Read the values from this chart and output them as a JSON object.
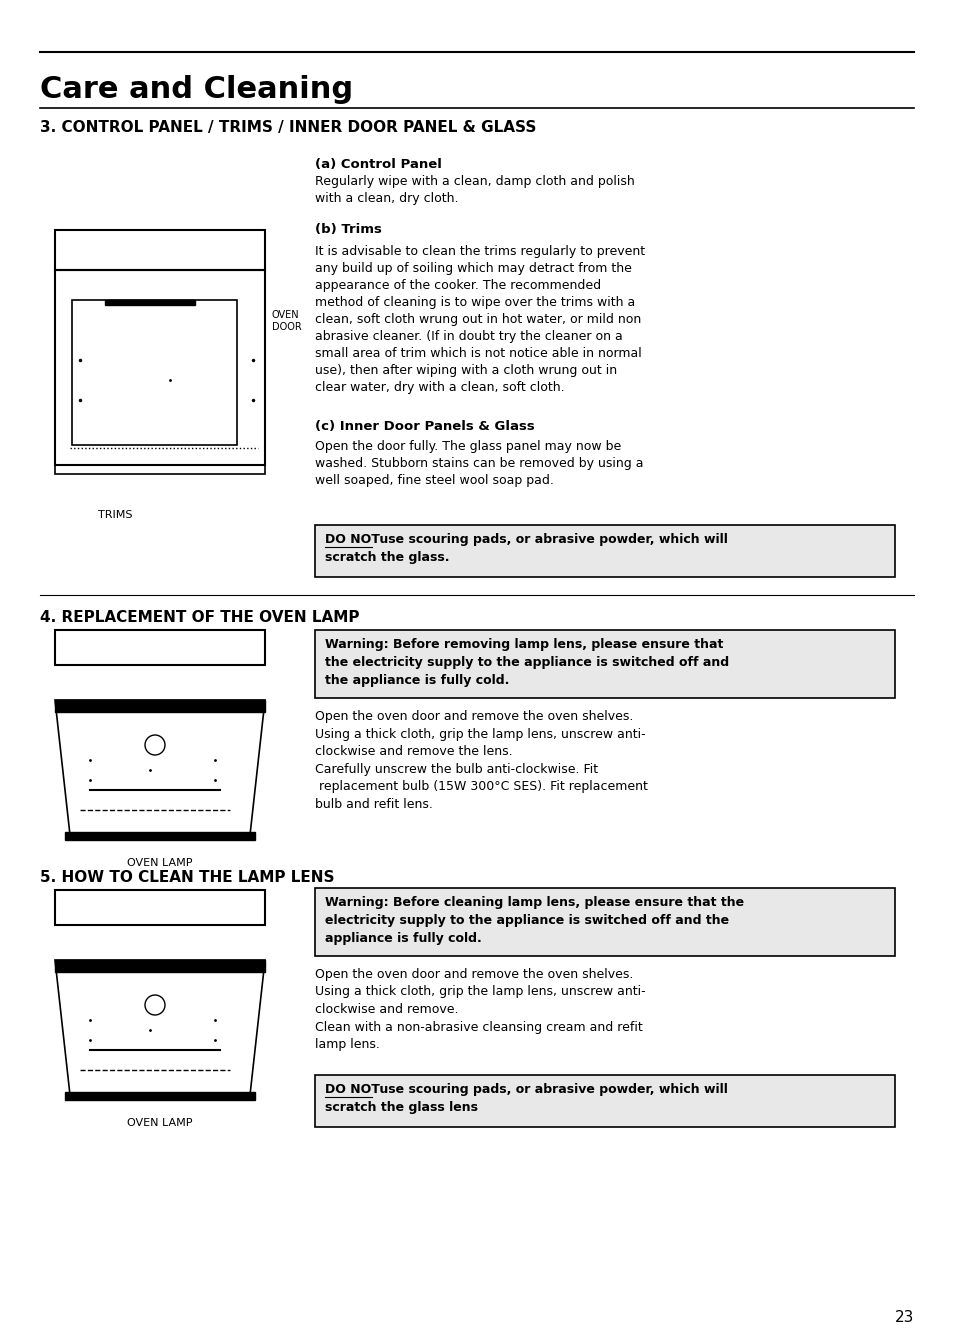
{
  "bg_color": "#ffffff",
  "page_number": "23",
  "main_title": "Care and Cleaning",
  "section3_title": "3. CONTROL PANEL / TRIMS / INNER DOOR PANEL & GLASS",
  "section4_title": "4. REPLACEMENT OF THE OVEN LAMP",
  "section5_title": "5. HOW TO CLEAN THE LAMP LENS",
  "sub_a_title": "(a) Control Panel",
  "sub_a_text": "Regularly wipe with a clean, damp cloth and polish\nwith a clean, dry cloth.",
  "sub_b_title": "(b) Trims",
  "sub_b_text": "It is advisable to clean the trims regularly to prevent\nany build up of soiling which may detract from the\nappearance of the cooker. The recommended\nmethod of cleaning is to wipe over the trims with a\nclean, soft cloth wrung out in hot water, or mild non\nabrasive cleaner. (If in doubt try the cleaner on a\nsmall area of trim which is not notice able in normal\nuse), then after wiping with a cloth wrung out in\nclear water, dry with a clean, soft cloth.",
  "sub_c_title": "(c) Inner Door Panels & Glass",
  "sub_c_text": "Open the door fully. The glass panel may now be\nwashed. Stubborn stains can be removed by using a\nwell soaped, fine steel wool soap pad.",
  "warning_box1_text": "DO NOT use scouring pads, or abrasive powder, which will\nscratch the glass.",
  "warning_box2_text": "Warning: Before removing lamp lens, please ensure that\nthe electricity supply to the appliance is switched off and\nthe appliance is fully cold.",
  "section4_body": "Open the oven door and remove the oven shelves.\nUsing a thick cloth, grip the lamp lens, unscrew anti-\nclockwise and remove the lens.\nCarefully unscrew the bulb anti-clockwise. Fit\n replacement bulb (15W 300°C SES). Fit replacement\nbulb and refit lens.",
  "warning_box3_text": "Warning: Before cleaning lamp lens, please ensure that the\nelectricity supply to the appliance is switched off and the\nappliance is fully cold.",
  "section5_body": "Open the oven door and remove the oven shelves.\nUsing a thick cloth, grip the lamp lens, unscrew anti-\nclockwise and remove.\nClean with a non-abrasive cleansing cream and refit\nlamp lens.",
  "warning_box4_text": "DO NOT use scouring pads, or abrasive powder, which will\nscratch the glass lens",
  "label_oven_door": "OVEN\nDOOR",
  "label_trims": "TRIMS",
  "label_oven_lamp1": "OVEN LAMP",
  "label_oven_lamp2": "OVEN LAMP"
}
